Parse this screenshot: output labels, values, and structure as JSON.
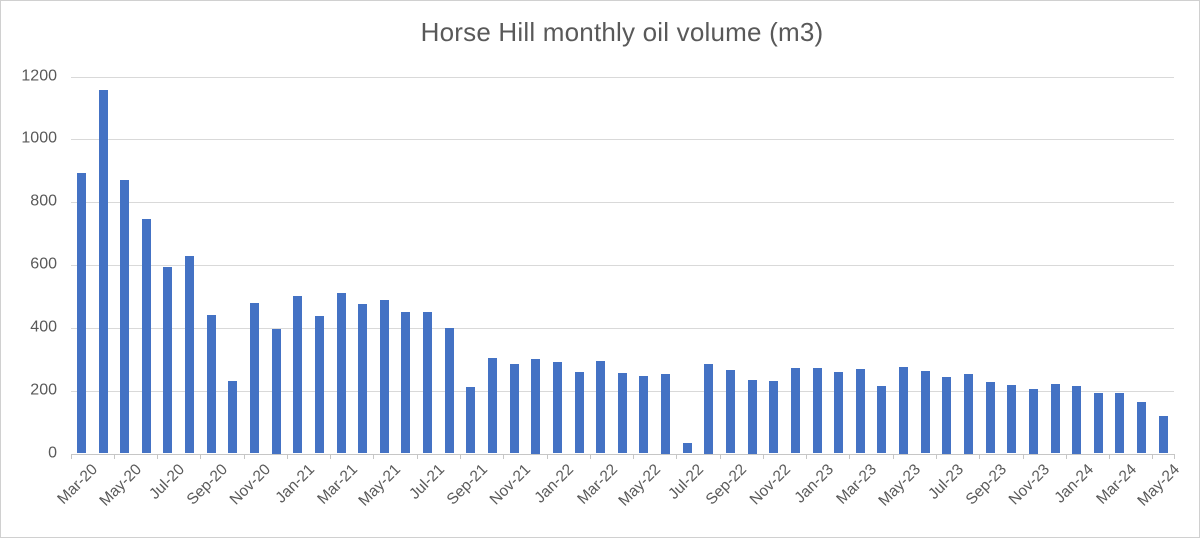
{
  "chart_data": {
    "type": "bar",
    "title": "Horse Hill monthly oil volume (m3)",
    "xlabel": "",
    "ylabel": "",
    "ylim": [
      0,
      1200
    ],
    "y_ticks": [
      0,
      200,
      400,
      600,
      800,
      1000,
      1200
    ],
    "grid": "horizontal",
    "legend": "none",
    "x_label_every": 2,
    "colors": {
      "bar": "#4472C4",
      "gridline": "#D9D9D9",
      "axis_line": "#C6C6C6",
      "text": "#595959",
      "background": "#FFFFFF"
    },
    "categories": [
      "Mar-20",
      "Apr-20",
      "May-20",
      "Jun-20",
      "Jul-20",
      "Aug-20",
      "Sep-20",
      "Oct-20",
      "Nov-20",
      "Dec-20",
      "Jan-21",
      "Feb-21",
      "Mar-21",
      "Apr-21",
      "May-21",
      "Jun-21",
      "Jul-21",
      "Aug-21",
      "Sep-21",
      "Oct-21",
      "Nov-21",
      "Dec-21",
      "Jan-22",
      "Feb-22",
      "Mar-22",
      "Apr-22",
      "May-22",
      "Jun-22",
      "Jul-22",
      "Aug-22",
      "Sep-22",
      "Oct-22",
      "Nov-22",
      "Dec-22",
      "Jan-23",
      "Feb-23",
      "Mar-23",
      "Apr-23",
      "May-23",
      "Jun-23",
      "Jul-23",
      "Aug-23",
      "Sep-23",
      "Oct-23",
      "Nov-23",
      "Dec-23",
      "Jan-24",
      "Feb-24",
      "Mar-24",
      "Apr-24",
      "May-24"
    ],
    "values": [
      892,
      1158,
      870,
      745,
      595,
      630,
      442,
      230,
      478,
      398,
      500,
      438,
      512,
      477,
      490,
      449,
      450,
      399,
      211,
      305,
      284,
      300,
      292,
      258,
      295,
      256,
      247,
      253,
      32,
      285,
      266,
      234,
      231,
      271,
      271,
      258,
      270,
      216,
      277,
      263,
      245,
      253,
      228,
      219,
      207,
      222,
      215,
      192,
      193,
      163,
      119
    ],
    "x_tick_labels_shown": [
      "Mar-20",
      "May-20",
      "Jul-20",
      "Sep-20",
      "Nov-20",
      "Jan-21",
      "Mar-21",
      "May-21",
      "Jul-21",
      "Sep-21",
      "Nov-21",
      "Jan-22",
      "Mar-22",
      "May-22",
      "Jul-22",
      "Sep-22",
      "Nov-22",
      "Jan-23",
      "Mar-23",
      "May-23",
      "Jul-23",
      "Sep-23",
      "Nov-23",
      "Jan-24",
      "Mar-24",
      "May-24"
    ]
  }
}
